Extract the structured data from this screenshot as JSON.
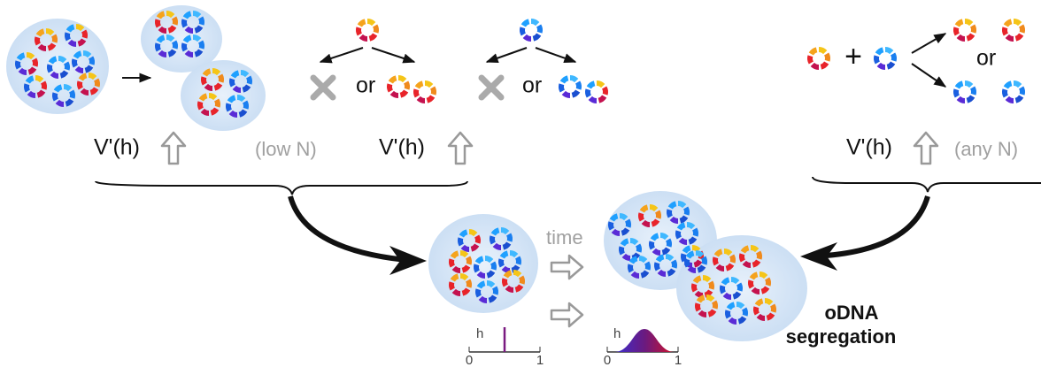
{
  "labels": {
    "vh": [
      "V'(h)",
      "V'(h)",
      "V'(h)"
    ],
    "low_n": "(low N)",
    "any_n": "(any N)",
    "or": [
      "or",
      "or",
      "or"
    ],
    "plus": "+",
    "time": "time",
    "result": [
      "oDNA",
      "segregation"
    ],
    "plots": [
      {
        "axis": "h",
        "min": 0,
        "max": 1
      },
      {
        "axis": "h",
        "min": 0,
        "max": 1
      }
    ]
  }
}
